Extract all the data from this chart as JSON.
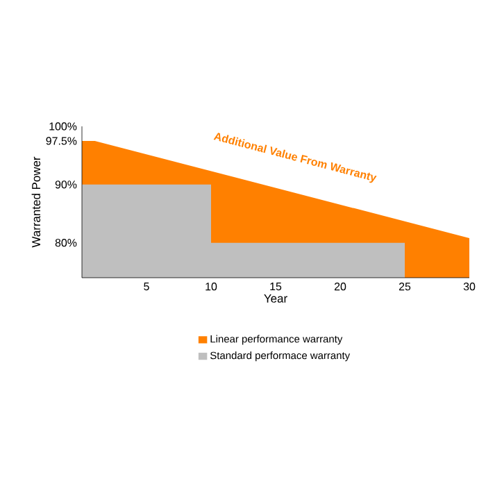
{
  "chart_data": {
    "type": "area",
    "xlabel": "Year",
    "ylabel": "Warranted Power",
    "xlim": [
      0,
      30
    ],
    "ylim": [
      74,
      100
    ],
    "xticks": [
      5,
      10,
      15,
      20,
      25,
      30
    ],
    "yticks": [
      {
        "value": 80,
        "label": "80%"
      },
      {
        "value": 90,
        "label": "90%"
      },
      {
        "value": 97.5,
        "label": "97.5%"
      },
      {
        "value": 100,
        "label": "100%"
      }
    ],
    "series": [
      {
        "name": "Linear performance warranty",
        "color": "#ff8000",
        "x": [
          0,
          1,
          30
        ],
        "values": [
          97.5,
          97.5,
          80.8
        ]
      },
      {
        "name": "Standard performace warranty",
        "color": "#bfbfbf",
        "x": [
          0,
          10,
          10,
          25,
          25
        ],
        "values": [
          90,
          90,
          80,
          80,
          74
        ]
      }
    ],
    "annotations": [
      "Additional Value From Warranty"
    ],
    "legend": "bottom",
    "grid": false
  }
}
